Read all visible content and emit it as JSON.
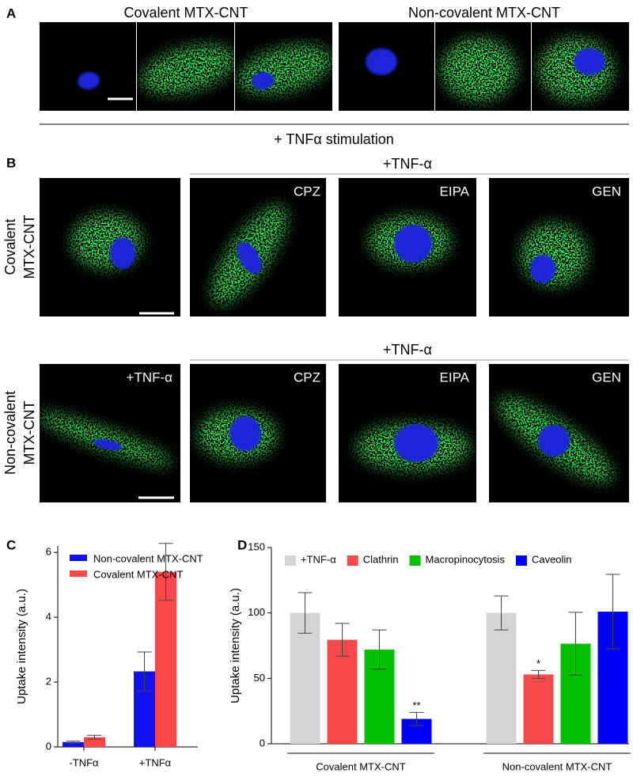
{
  "panel_a": {
    "label": "A",
    "titles": [
      "Covalent MTX-CNT",
      "Non-covalent MTX-CNT"
    ],
    "caption": "+ TNFα stimulation"
  },
  "panel_b": {
    "label": "B",
    "group_headers": [
      "+TNF-α",
      "+TNF-α"
    ],
    "row_labels": [
      [
        "Covalent",
        "MTX-CNT"
      ],
      [
        "Non-covalent",
        "MTX-CNT"
      ]
    ],
    "insets": [
      [
        "CPZ",
        "EIPA",
        "GEN"
      ],
      [
        "+TNF-α",
        "CPZ",
        "EIPA",
        "GEN"
      ]
    ]
  },
  "chart_data": [
    {
      "type": "bar",
      "panel_label": "C",
      "y_label": "Uptake intensity (a.u.)",
      "categories": [
        "-TNFα",
        "+TNFα"
      ],
      "series": [
        {
          "name": "Non-covalent MTX-CNT",
          "color": "#1010f0",
          "values": [
            0.15,
            2.33
          ],
          "errors": [
            0.03,
            0.6
          ]
        },
        {
          "name": "Covalent MTX-CNT",
          "color": "#f84848",
          "values": [
            0.3,
            5.4
          ],
          "errors": [
            0.06,
            0.88
          ]
        }
      ],
      "ylim": [
        0,
        6.2
      ],
      "yticks": [
        0,
        2,
        4,
        6
      ],
      "legend": "upper left"
    },
    {
      "type": "bar",
      "panel_label": "D",
      "y_label": "Uptake intensity (a.u.)",
      "categories": [
        "Covalent MTX-CNT",
        "Non-covalent MTX-CNT"
      ],
      "series": [
        {
          "name": "+TNF-α",
          "color": "#d4d4d4",
          "values": [
            100,
            100
          ],
          "errors": [
            15.5,
            13
          ]
        },
        {
          "name": "Clathrin",
          "color": "#f44a4a",
          "values": [
            79.5,
            53
          ],
          "errors": [
            12.5,
            3
          ],
          "significance": [
            null,
            "*"
          ]
        },
        {
          "name": "Macropinocytosis",
          "color": "#00c000",
          "values": [
            72,
            76.5
          ],
          "errors": [
            15,
            24
          ]
        },
        {
          "name": "Caveolin",
          "color": "#0000ff",
          "values": [
            19,
            101
          ],
          "errors": [
            5,
            28.5
          ],
          "significance": [
            "**",
            null
          ]
        }
      ],
      "ylim": [
        0,
        150
      ],
      "yticks": [
        0,
        50,
        100,
        150
      ],
      "legend": "top"
    }
  ]
}
